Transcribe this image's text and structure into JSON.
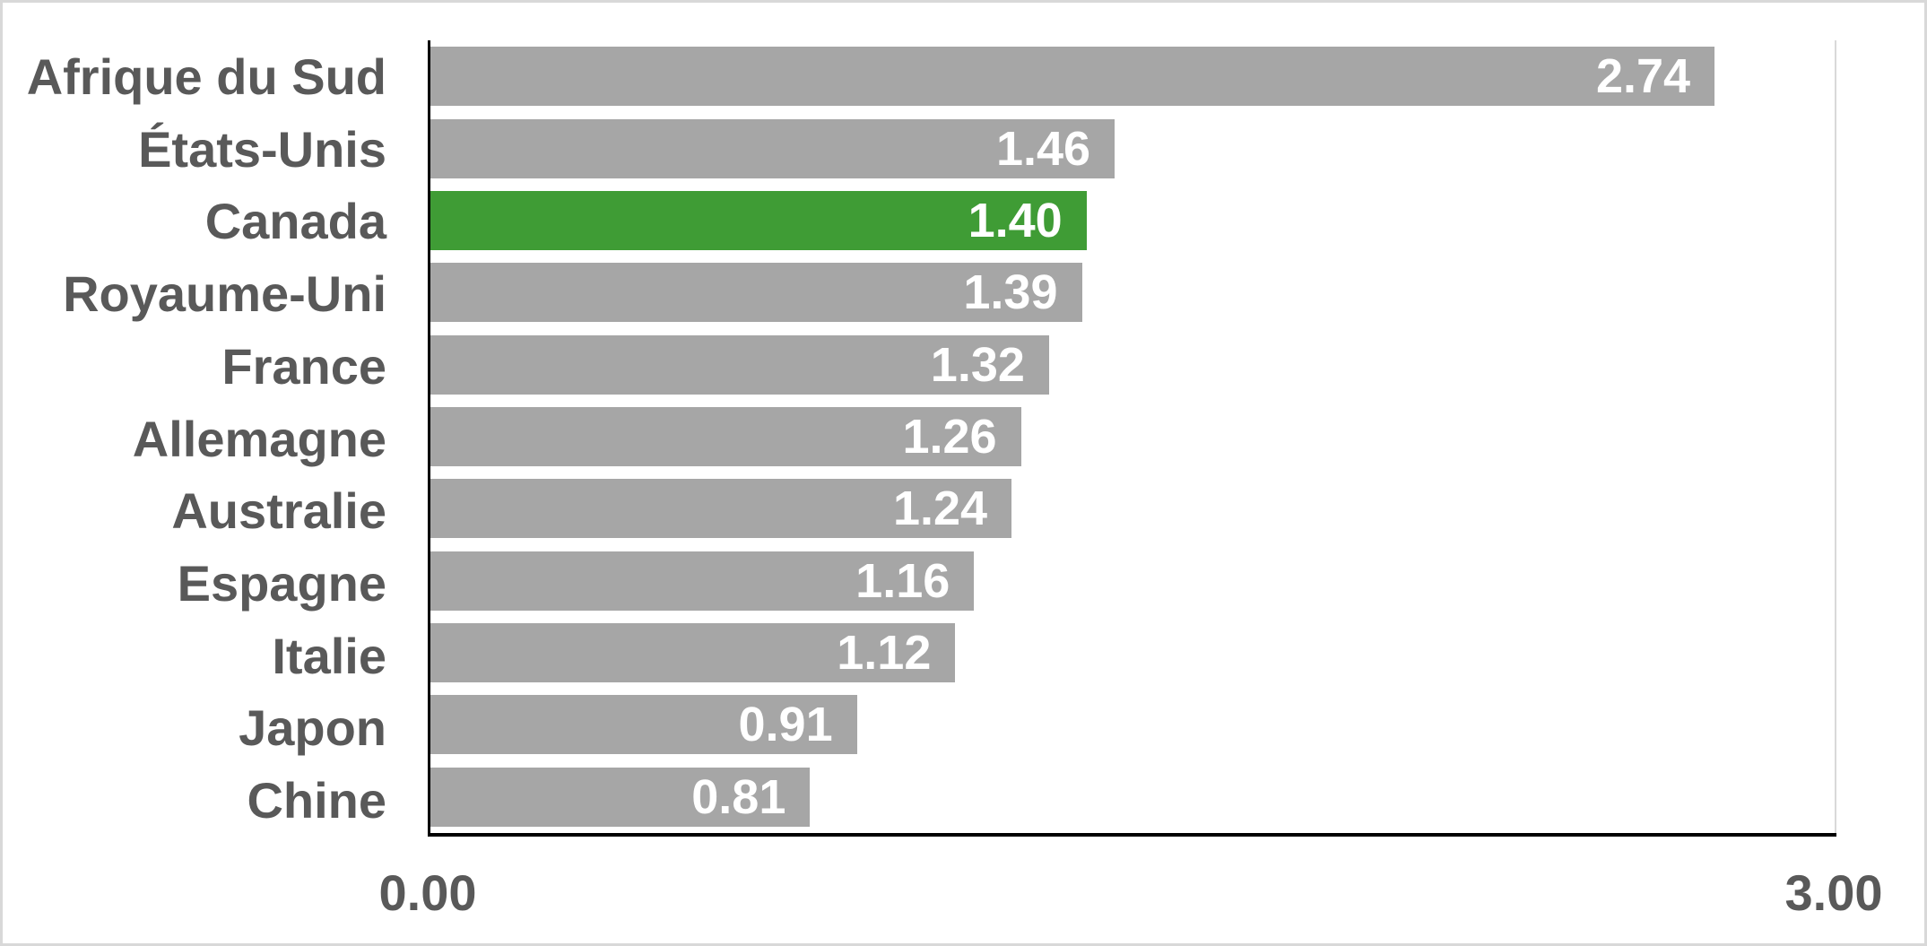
{
  "chart_data": {
    "type": "bar",
    "orientation": "horizontal",
    "title": "",
    "categories": [
      "Afrique du Sud",
      "États-Unis",
      "Canada",
      "Royaume-Uni",
      "France",
      "Allemagne",
      "Australie",
      "Espagne",
      "Italie",
      "Japon",
      "Chine"
    ],
    "values": [
      2.74,
      1.46,
      1.4,
      1.39,
      1.32,
      1.26,
      1.24,
      1.16,
      1.12,
      0.91,
      0.81
    ],
    "data_labels": [
      "2.74",
      "1.46",
      "1.40",
      "1.39",
      "1.32",
      "1.26",
      "1.24",
      "1.16",
      "1.12",
      "0.91",
      "0.81"
    ],
    "highlight_category": "Canada",
    "xlim": [
      0,
      3
    ],
    "x_tick_labels": [
      "0.00",
      "3.00"
    ],
    "legend": "none",
    "grid": "right-boundary-gridline-only",
    "colors": {
      "bar_default": "#A6A6A6",
      "bar_highlight": "#3F9C35",
      "data_label_text": "#FFFFFF",
      "category_label_text": "#595959",
      "tick_label_text": "#595959",
      "axis_line": "#000000",
      "gridline": "#D9D9D9",
      "background": "#FFFFFF",
      "frame_border": "#D8D8D8"
    }
  }
}
